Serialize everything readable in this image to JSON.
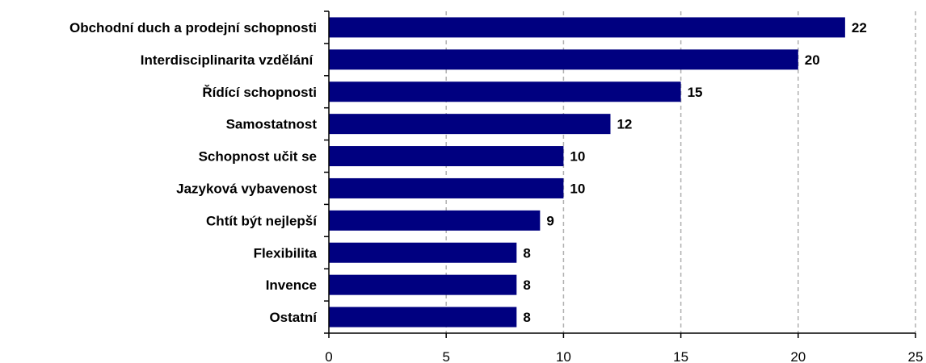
{
  "chart_data": {
    "type": "bar",
    "orientation": "horizontal",
    "categories": [
      "Obchodní duch a prodejní schopnosti",
      "Interdisciplinarita vzdělání ",
      "Řídící schopnosti",
      "Samostatnost",
      "Schopnost učit se",
      "Jazyková vybavenost",
      "Chtít být nejlepší",
      "Flexibilita",
      "Invence",
      "Ostatní"
    ],
    "values": [
      22,
      20,
      15,
      12,
      10,
      10,
      9,
      8,
      8,
      8
    ],
    "xlim": [
      0,
      25
    ],
    "xticks": [
      0,
      5,
      10,
      15,
      20,
      25
    ],
    "grid": "vertical dashed",
    "data_labels": true,
    "colors": {
      "bar": "#000080",
      "grid": "#b0b0b0",
      "axis": "#000000"
    }
  }
}
